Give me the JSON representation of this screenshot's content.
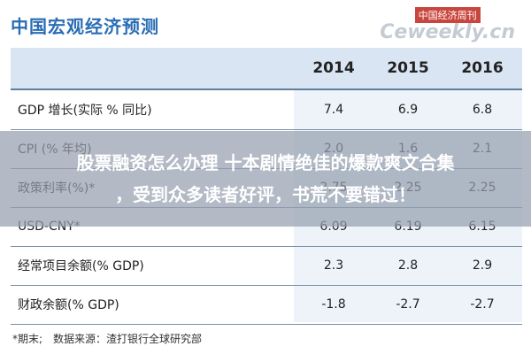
{
  "header": {
    "title": "中国宏观经济预测",
    "logo_cn": "中国经济周刊",
    "logo_en": "Ceweekly.cn"
  },
  "table": {
    "columns": [
      "2014",
      "2015",
      "2016"
    ],
    "rows": [
      [
        "GDP 增长(实际 % 同比)",
        "7.4",
        "6.9",
        "6.8"
      ],
      [
        "CPI (% 年均)",
        "2.0",
        "1.6",
        "2.1"
      ],
      [
        "政策利率(%)*",
        "2.75",
        "2.25",
        "2.25"
      ],
      [
        "USD-CNY*",
        "6.09",
        "6.19",
        "6.15"
      ],
      [
        "经常项目余额(% GDP)",
        "2.3",
        "2.8",
        "2.9"
      ],
      [
        "财政余额(% GDP)",
        "-1.8",
        "-2.7",
        "-2.7"
      ]
    ]
  },
  "footnote": "*期末;　数据来源：渣打银行全球研究部",
  "overlay": {
    "lines": [
      "股票融资怎么办理 十本剧情绝佳的爆款爽文合集",
      "，受到众多读者好评，书荒不要错过！"
    ]
  }
}
